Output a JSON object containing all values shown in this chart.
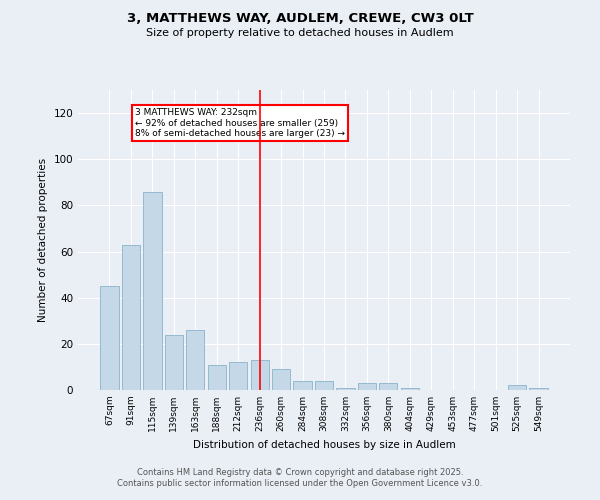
{
  "title": "3, MATTHEWS WAY, AUDLEM, CREWE, CW3 0LT",
  "subtitle": "Size of property relative to detached houses in Audlem",
  "xlabel": "Distribution of detached houses by size in Audlem",
  "ylabel": "Number of detached properties",
  "bar_labels": [
    "67sqm",
    "91sqm",
    "115sqm",
    "139sqm",
    "163sqm",
    "188sqm",
    "212sqm",
    "236sqm",
    "260sqm",
    "284sqm",
    "308sqm",
    "332sqm",
    "356sqm",
    "380sqm",
    "404sqm",
    "429sqm",
    "453sqm",
    "477sqm",
    "501sqm",
    "525sqm",
    "549sqm"
  ],
  "bar_values": [
    45,
    63,
    86,
    24,
    26,
    11,
    12,
    13,
    9,
    4,
    4,
    1,
    3,
    3,
    1,
    0,
    0,
    0,
    0,
    2,
    1
  ],
  "bar_color": "#c5d8e8",
  "bar_edge_color": "#8ab4cc",
  "highlight_index": 7,
  "annotation_text": "3 MATTHEWS WAY: 232sqm\n← 92% of detached houses are smaller (259)\n8% of semi-detached houses are larger (23) →",
  "annotation_box_color": "white",
  "annotation_box_edge_color": "red",
  "vline_color": "red",
  "ylim": [
    0,
    130
  ],
  "yticks": [
    0,
    20,
    40,
    60,
    80,
    100,
    120
  ],
  "background_color": "#eaeef5",
  "grid_color": "#ffffff",
  "footer_line1": "Contains HM Land Registry data © Crown copyright and database right 2025.",
  "footer_line2": "Contains public sector information licensed under the Open Government Licence v3.0."
}
